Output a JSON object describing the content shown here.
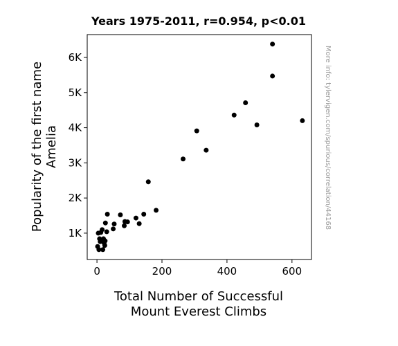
{
  "chart_data": {
    "type": "scatter",
    "title": "Years 1975-2011, r=0.954, p<0.01",
    "xlabel": [
      "Total Number of Successful",
      "Mount Everest Climbs"
    ],
    "ylabel": [
      "Popularity of the first name",
      "Amelia"
    ],
    "watermark": "More info: tylervigen.com/spurious/correlation/44168",
    "xlim": [
      -30,
      660
    ],
    "ylim": [
      250,
      6650
    ],
    "xticks": [
      {
        "value": 0,
        "label": "0"
      },
      {
        "value": 200,
        "label": "200"
      },
      {
        "value": 400,
        "label": "400"
      },
      {
        "value": 600,
        "label": "600"
      }
    ],
    "yticks": [
      {
        "value": 1000,
        "label": "1K"
      },
      {
        "value": 2000,
        "label": "2K"
      },
      {
        "value": 3000,
        "label": "3K"
      },
      {
        "value": 4000,
        "label": "4K"
      },
      {
        "value": 5000,
        "label": "5K"
      },
      {
        "value": 6000,
        "label": "6K"
      }
    ],
    "marker_color": "#000000",
    "grid": false,
    "points": [
      {
        "x": 2,
        "y": 620
      },
      {
        "x": 4,
        "y": 1000
      },
      {
        "x": 6,
        "y": 530
      },
      {
        "x": 8,
        "y": 840
      },
      {
        "x": 10,
        "y": 760
      },
      {
        "x": 12,
        "y": 1020
      },
      {
        "x": 14,
        "y": 800
      },
      {
        "x": 16,
        "y": 1100
      },
      {
        "x": 18,
        "y": 530
      },
      {
        "x": 20,
        "y": 840
      },
      {
        "x": 22,
        "y": 720
      },
      {
        "x": 24,
        "y": 650
      },
      {
        "x": 25,
        "y": 780
      },
      {
        "x": 26,
        "y": 1290
      },
      {
        "x": 30,
        "y": 1040
      },
      {
        "x": 32,
        "y": 1540
      },
      {
        "x": 50,
        "y": 1120
      },
      {
        "x": 53,
        "y": 1260
      },
      {
        "x": 72,
        "y": 1520
      },
      {
        "x": 84,
        "y": 1210
      },
      {
        "x": 86,
        "y": 1330
      },
      {
        "x": 94,
        "y": 1320
      },
      {
        "x": 120,
        "y": 1430
      },
      {
        "x": 130,
        "y": 1270
      },
      {
        "x": 144,
        "y": 1540
      },
      {
        "x": 158,
        "y": 2460
      },
      {
        "x": 182,
        "y": 1650
      },
      {
        "x": 265,
        "y": 3110
      },
      {
        "x": 307,
        "y": 3910
      },
      {
        "x": 336,
        "y": 3360
      },
      {
        "x": 422,
        "y": 4360
      },
      {
        "x": 457,
        "y": 4710
      },
      {
        "x": 492,
        "y": 4080
      },
      {
        "x": 540,
        "y": 6380
      },
      {
        "x": 540,
        "y": 5470
      },
      {
        "x": 632,
        "y": 4200
      }
    ]
  }
}
